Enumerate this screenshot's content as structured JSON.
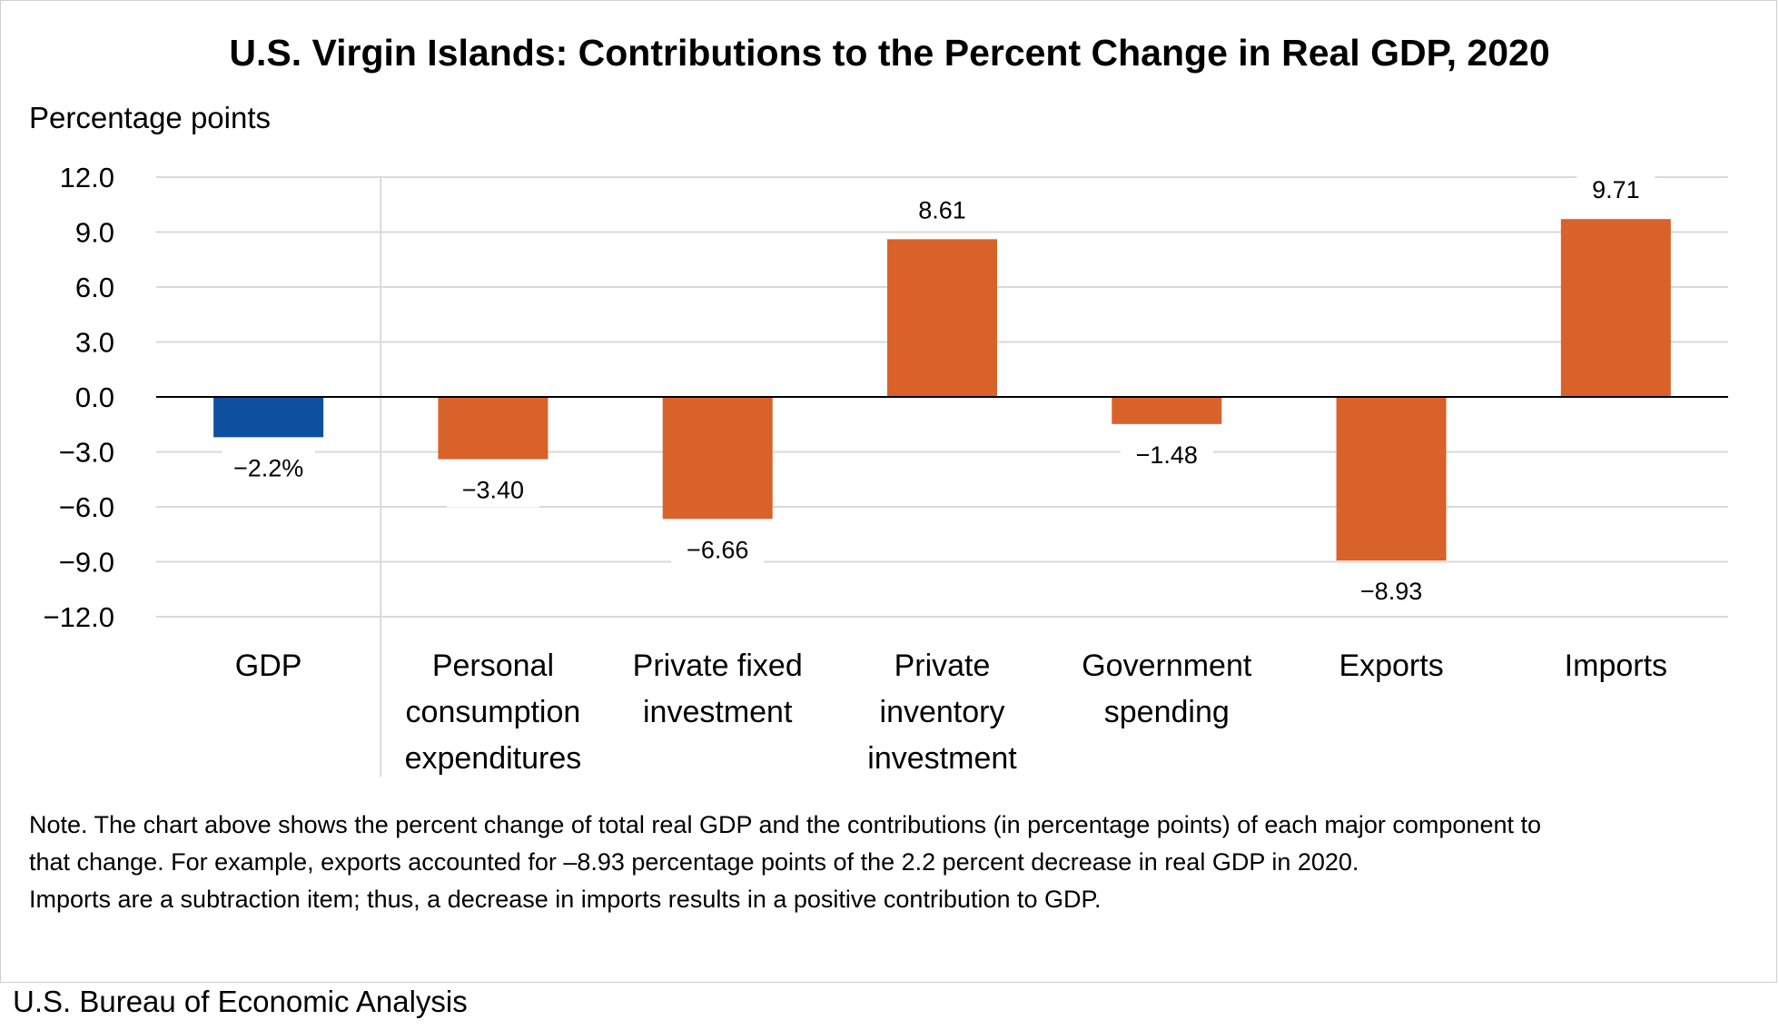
{
  "chart_data": {
    "type": "bar",
    "title": "U.S. Virgin Islands: Contributions to the Percent Change in Real GDP, 2020",
    "ylabel": "Percentage points",
    "xlabel": "",
    "ylim": [
      -12,
      12
    ],
    "yticks": [
      12,
      9,
      6,
      3,
      0,
      -3,
      -6,
      -9,
      -12
    ],
    "ytick_labels": [
      "12.0",
      "9.0",
      "6.0",
      "3.0",
      "0.0",
      "−3.0",
      "−6.0",
      "−9.0",
      "−12.0"
    ],
    "grid": true,
    "categories": [
      [
        "GDP"
      ],
      [
        "Personal",
        "consumption",
        "expenditures"
      ],
      [
        "Private fixed",
        "investment"
      ],
      [
        "Private",
        "inventory",
        "investment"
      ],
      [
        "Government",
        "spending"
      ],
      [
        "Exports"
      ],
      [
        "Imports"
      ]
    ],
    "values": [
      -2.2,
      -3.4,
      -6.66,
      8.61,
      -1.48,
      -8.93,
      9.71
    ],
    "data_labels": [
      "−2.2%",
      "−3.40",
      "−6.66",
      "8.61",
      "−1.48",
      "−8.93",
      "9.71"
    ],
    "colors": [
      "#0f4f9f",
      "#d9622b",
      "#d9622b",
      "#d9622b",
      "#d9622b",
      "#d9622b",
      "#d9622b"
    ]
  },
  "note": {
    "lines": [
      "Note. The chart above shows the percent change of total real GDP and the contributions (in percentage points) of each major component to",
      "that change. For example, exports accounted for –8.93 percentage points of the 2.2 percent decrease in real GDP in 2020.",
      "Imports are a subtraction item; thus, a decrease in imports results in a positive contribution to GDP."
    ]
  },
  "source": "U.S. Bureau of Economic Analysis"
}
